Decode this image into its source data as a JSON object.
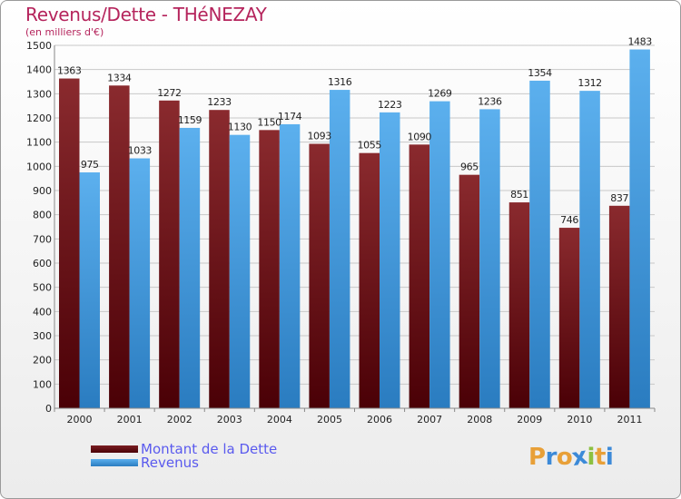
{
  "title": "Revenus/Dette - THéNEZAY",
  "subtitle": "(en milliers d'€)",
  "colors": {
    "title": "#b5245c",
    "dette": "#7a1e22",
    "dette_dark": "#4a0006",
    "revenus": "#55a8e6",
    "revenus_dark": "#1f6fb0",
    "legend_text": "#5a5aee"
  },
  "legend": {
    "dette_label": "Montant de la Dette",
    "revenus_label": "Revenus"
  },
  "logo": {
    "letters": [
      "P",
      "r",
      "o",
      "x",
      "i",
      "t",
      "i"
    ],
    "colors": [
      "#e8a038",
      "#3c8ad8",
      "#e8a038",
      "#3c8ad8",
      "#8cc040",
      "#e8a038",
      "#3c8ad8"
    ]
  },
  "chart_data": {
    "type": "bar",
    "title": "Revenus/Dette - THéNEZAY",
    "ylabel": "(en milliers d'€)",
    "xlabel": "",
    "categories": [
      "2000",
      "2001",
      "2002",
      "2003",
      "2004",
      "2005",
      "2006",
      "2007",
      "2008",
      "2009",
      "2010",
      "2011"
    ],
    "series": [
      {
        "name": "Montant de la Dette",
        "values": [
          1363,
          1334,
          1272,
          1233,
          1150,
          1093,
          1055,
          1090,
          965,
          851,
          746,
          837
        ]
      },
      {
        "name": "Revenus",
        "values": [
          975,
          1033,
          1159,
          1130,
          1174,
          1316,
          1223,
          1269,
          1236,
          1354,
          1312,
          1483
        ]
      }
    ],
    "ylim": [
      0,
      1500
    ],
    "yticks": [
      0,
      100,
      200,
      300,
      400,
      500,
      600,
      700,
      800,
      900,
      1000,
      1100,
      1200,
      1300,
      1400,
      1500
    ],
    "grid": true,
    "legend_position": "bottom-left"
  }
}
